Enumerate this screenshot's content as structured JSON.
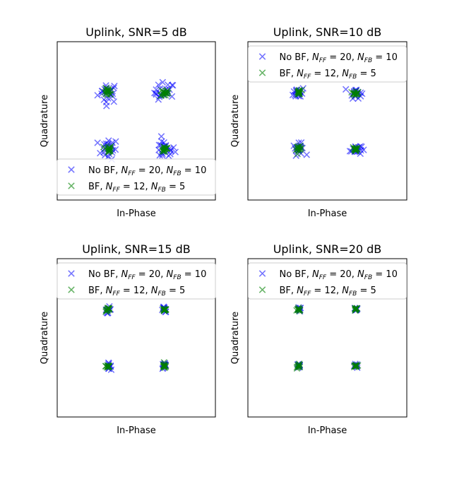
{
  "chart_data": [
    {
      "type": "scatter",
      "title": "Uplink, SNR=5 dB",
      "xlabel": "In-Phase",
      "ylabel": "Quadrature",
      "legend_position": "lower-center",
      "noise": {
        "nobf": 0.09,
        "bf": 0.035,
        "nobf_count": 22,
        "bf_count": 16
      },
      "series": [
        {
          "name": "No BF",
          "name_ff": "20",
          "name_fb": "10",
          "color": "#0000ff",
          "marker": "x",
          "points": [
            [
              -0.5,
              0.5
            ],
            [
              0.5,
              0.5
            ],
            [
              -0.5,
              -0.5
            ],
            [
              0.5,
              -0.5
            ]
          ]
        },
        {
          "name": "BF",
          "name_ff": "12",
          "name_fb": "5",
          "color": "#008000",
          "marker": "x",
          "points": [
            [
              -0.5,
              0.5
            ],
            [
              0.5,
              0.5
            ],
            [
              -0.5,
              -0.5
            ],
            [
              0.5,
              -0.5
            ]
          ]
        }
      ],
      "xlim": [
        -1.4,
        1.4
      ],
      "ylim": [
        -1.4,
        1.4
      ]
    },
    {
      "type": "scatter",
      "title": "Uplink, SNR=10 dB",
      "xlabel": "In-Phase",
      "ylabel": "Quadrature",
      "legend_position": "upper-center",
      "noise": {
        "nobf": 0.05,
        "bf": 0.025,
        "nobf_count": 18,
        "bf_count": 14
      },
      "series": [
        {
          "name": "No BF",
          "name_ff": "20",
          "name_fb": "10",
          "color": "#0000ff",
          "marker": "x",
          "points": [
            [
              -0.5,
              0.5
            ],
            [
              0.5,
              0.5
            ],
            [
              -0.5,
              -0.5
            ],
            [
              0.5,
              -0.5
            ]
          ]
        },
        {
          "name": "BF",
          "name_ff": "12",
          "name_fb": "5",
          "color": "#008000",
          "marker": "x",
          "points": [
            [
              -0.5,
              0.5
            ],
            [
              0.5,
              0.5
            ],
            [
              -0.5,
              -0.5
            ],
            [
              0.5,
              -0.5
            ]
          ]
        }
      ],
      "xlim": [
        -1.4,
        1.4
      ],
      "ylim": [
        -1.4,
        1.4
      ]
    },
    {
      "type": "scatter",
      "title": "Uplink, SNR=15 dB",
      "xlabel": "In-Phase",
      "ylabel": "Quadrature",
      "legend_position": "upper-center",
      "noise": {
        "nobf": 0.025,
        "bf": 0.02,
        "nobf_count": 12,
        "bf_count": 12
      },
      "series": [
        {
          "name": "No BF",
          "name_ff": "20",
          "name_fb": "10",
          "color": "#0000ff",
          "marker": "x",
          "points": [
            [
              -0.5,
              0.5
            ],
            [
              0.5,
              0.5
            ],
            [
              -0.5,
              -0.5
            ],
            [
              0.5,
              -0.5
            ]
          ]
        },
        {
          "name": "BF",
          "name_ff": "12",
          "name_fb": "5",
          "color": "#008000",
          "marker": "x",
          "points": [
            [
              -0.5,
              0.5
            ],
            [
              0.5,
              0.5
            ],
            [
              -0.5,
              -0.5
            ],
            [
              0.5,
              -0.5
            ]
          ]
        }
      ],
      "xlim": [
        -1.4,
        1.4
      ],
      "ylim": [
        -1.4,
        1.4
      ]
    },
    {
      "type": "scatter",
      "title": "Uplink, SNR=20 dB",
      "xlabel": "In-Phase",
      "ylabel": "Quadrature",
      "legend_position": "upper-center",
      "noise": {
        "nobf": 0.018,
        "bf": 0.016,
        "nobf_count": 10,
        "bf_count": 10
      },
      "series": [
        {
          "name": "No BF",
          "name_ff": "20",
          "name_fb": "10",
          "color": "#0000ff",
          "marker": "x",
          "points": [
            [
              -0.5,
              0.5
            ],
            [
              0.5,
              0.5
            ],
            [
              -0.5,
              -0.5
            ],
            [
              0.5,
              -0.5
            ]
          ]
        },
        {
          "name": "BF",
          "name_ff": "12",
          "name_fb": "5",
          "color": "#008000",
          "marker": "x",
          "points": [
            [
              -0.5,
              0.5
            ],
            [
              0.5,
              0.5
            ],
            [
              -0.5,
              -0.5
            ],
            [
              0.5,
              -0.5
            ]
          ]
        }
      ],
      "xlim": [
        -1.4,
        1.4
      ],
      "ylim": [
        -1.4,
        1.4
      ]
    }
  ]
}
